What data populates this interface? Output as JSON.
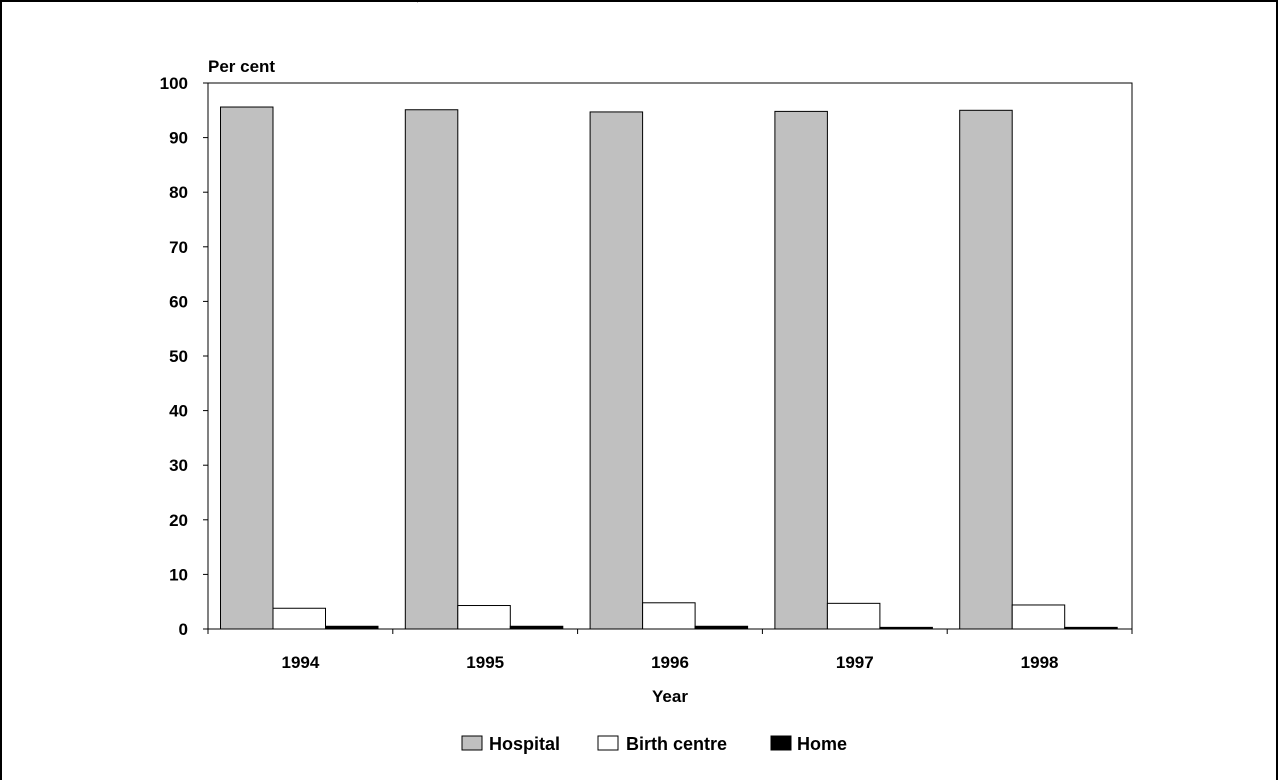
{
  "chart_data": {
    "type": "bar",
    "ylabel": "Per cent",
    "xlabel": "Year",
    "categories": [
      "1994",
      "1995",
      "1996",
      "1997",
      "1998"
    ],
    "ylim": [
      0,
      100
    ],
    "yticks": [
      "0",
      "10",
      "20",
      "30",
      "40",
      "50",
      "60",
      "70",
      "80",
      "90",
      "100"
    ],
    "grid": false,
    "legend_position": "bottom",
    "series": [
      {
        "name": "Hospital",
        "values": [
          95.6,
          95.1,
          94.7,
          94.8,
          95.0
        ],
        "color": "#c0c0c0"
      },
      {
        "name": "Birth centre",
        "values": [
          3.8,
          4.3,
          4.8,
          4.7,
          4.4
        ],
        "color": "#ffffff"
      },
      {
        "name": "Home",
        "values": [
          0.5,
          0.5,
          0.5,
          0.3,
          0.3
        ],
        "color": "#000000"
      }
    ]
  }
}
